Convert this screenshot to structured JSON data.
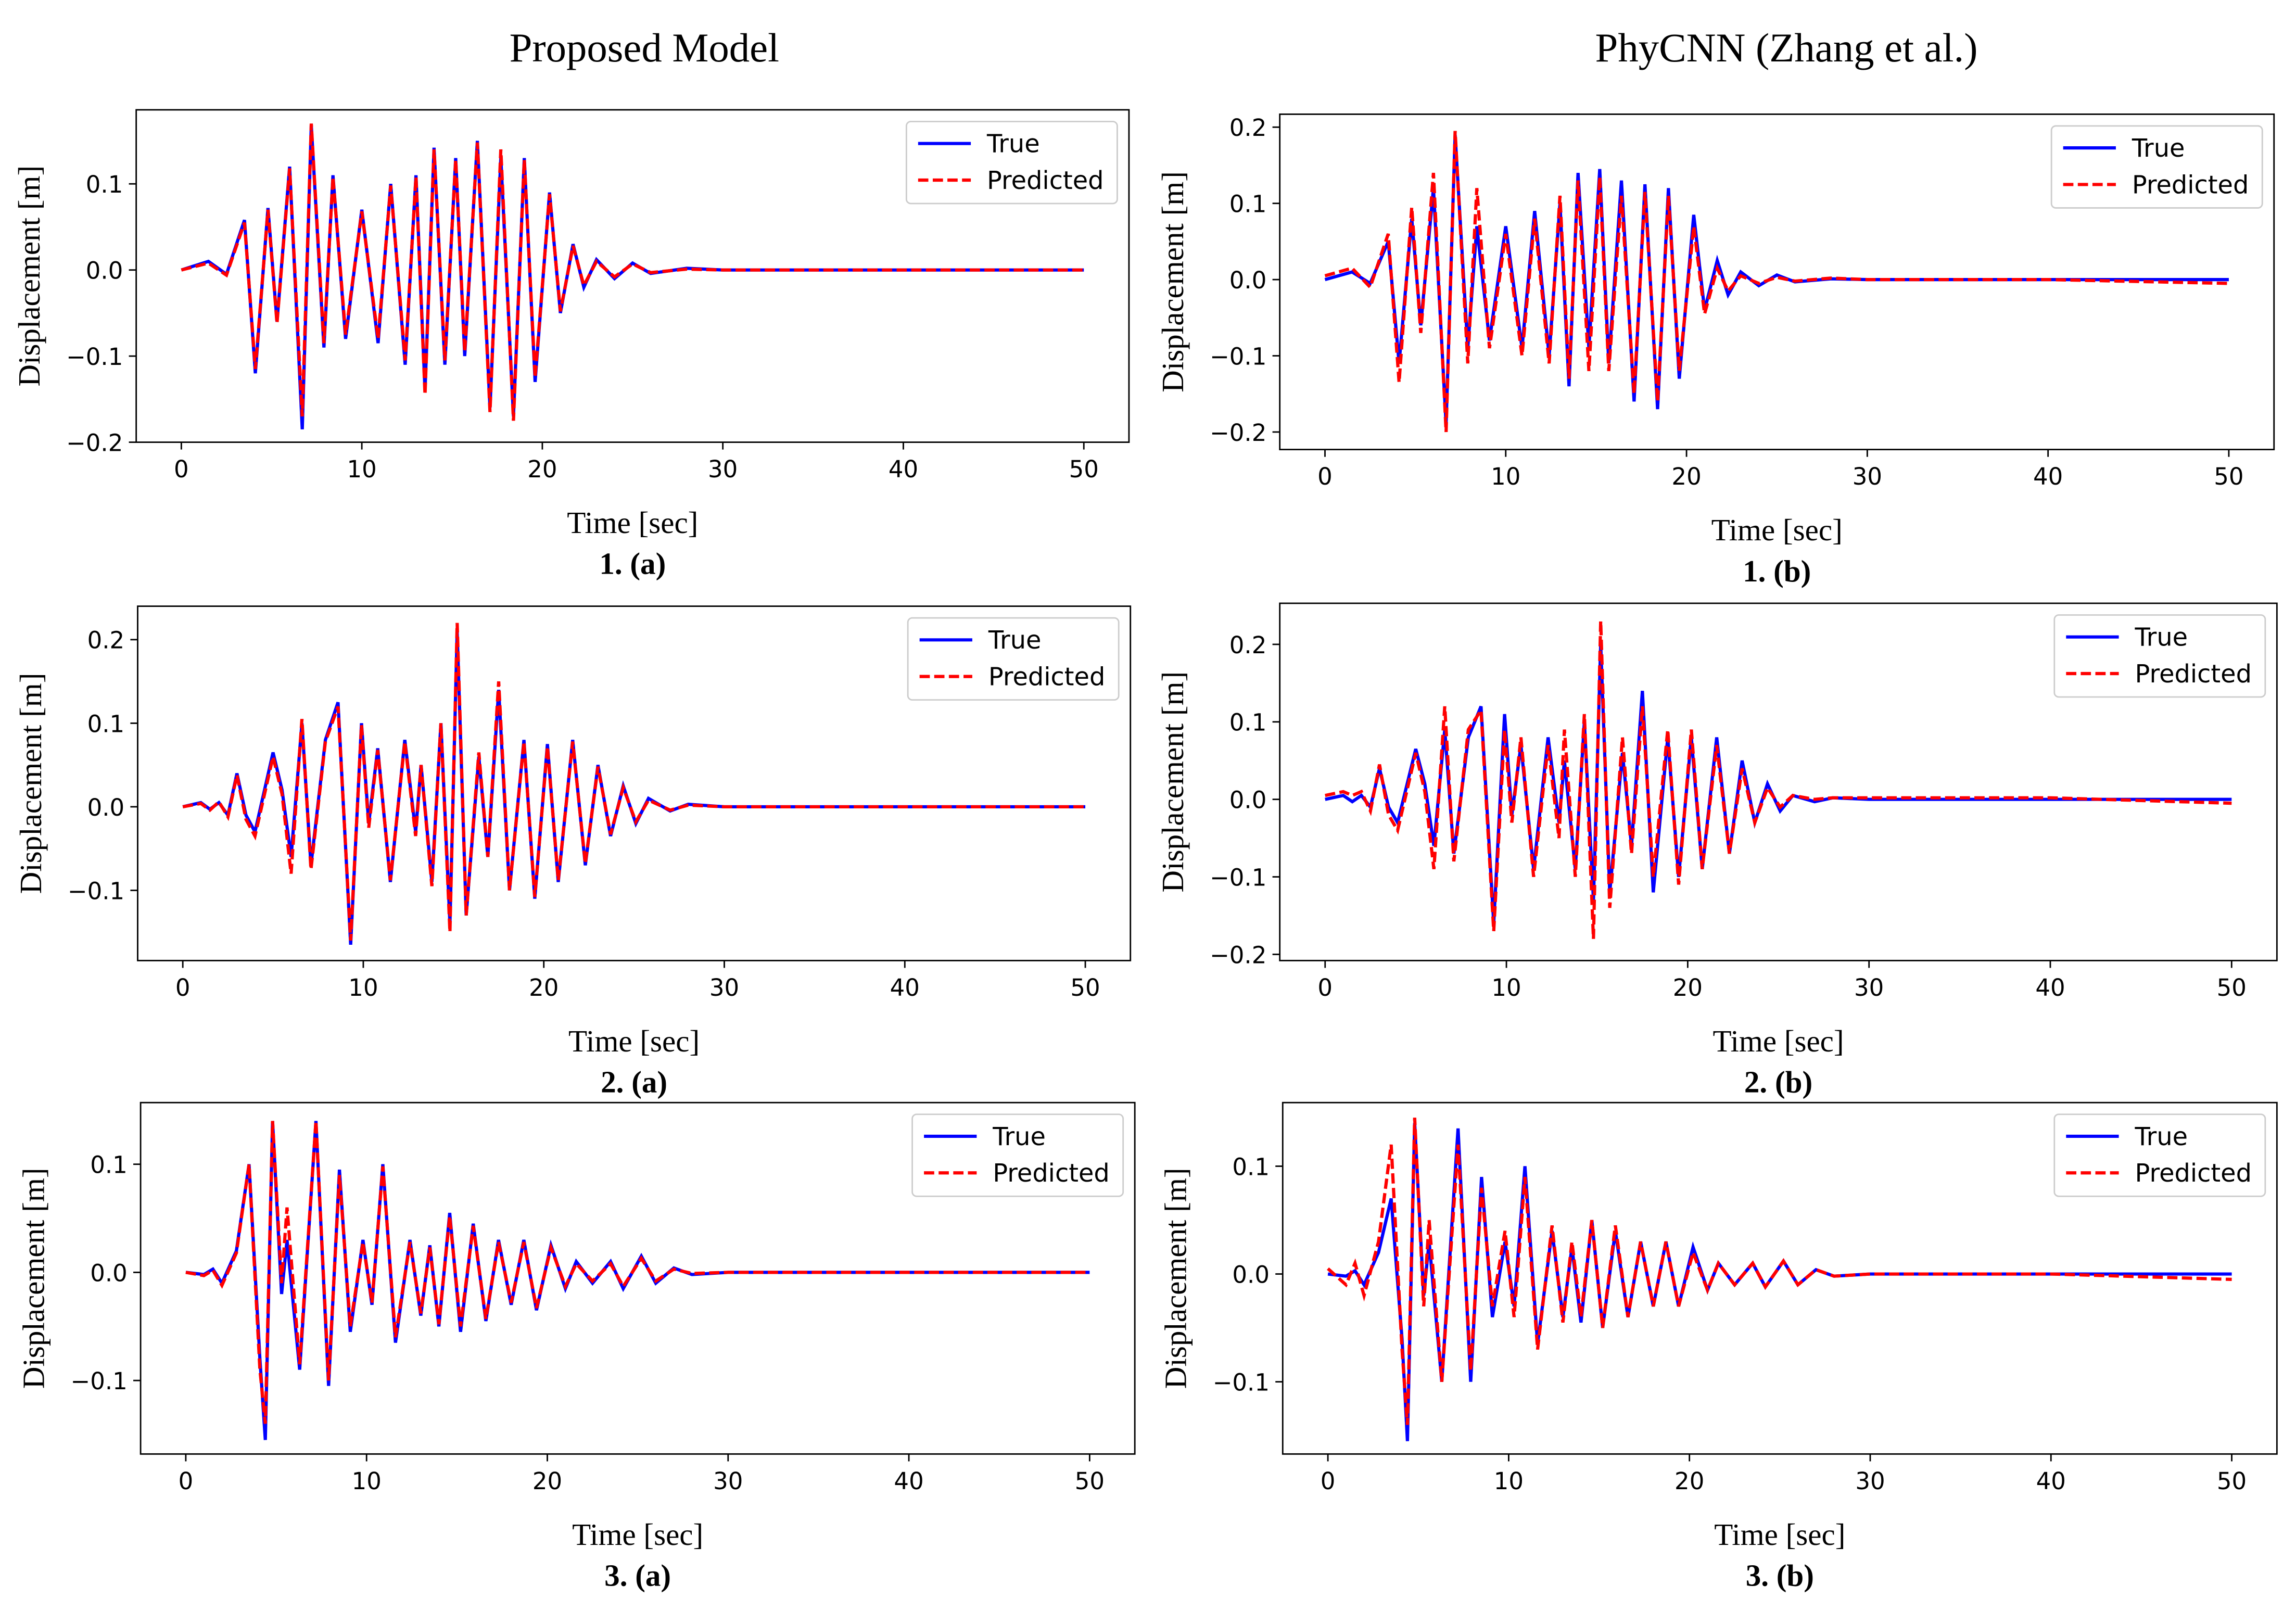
{
  "headers": [
    "Proposed Model",
    "PhyCNN (Zhang et al.)"
  ],
  "chart_data": [
    {
      "type": "line",
      "caption": "1. (a)",
      "xlabel": "Time [sec]",
      "ylabel": "Displacement [m]",
      "legend": "upper right",
      "x": [
        0,
        1.5,
        2.5,
        3.5,
        4.1,
        4.8,
        5.3,
        6.0,
        6.7,
        7.2,
        7.9,
        8.4,
        9.1,
        10.0,
        10.9,
        11.6,
        12.4,
        13.0,
        13.5,
        14.0,
        14.6,
        15.2,
        15.7,
        16.4,
        17.1,
        17.7,
        18.4,
        19.0,
        19.6,
        20.4,
        21.0,
        21.7,
        22.3,
        23,
        24,
        25,
        26,
        28,
        30,
        40,
        50
      ],
      "series": [
        {
          "name": "True",
          "color": "#0000ff",
          "linestyle": "solid",
          "values": [
            0,
            0.01,
            -0.005,
            0.058,
            -0.12,
            0.072,
            -0.06,
            0.12,
            -0.185,
            0.168,
            -0.09,
            0.11,
            -0.08,
            0.07,
            -0.085,
            0.1,
            -0.11,
            0.11,
            -0.14,
            0.142,
            -0.11,
            0.13,
            -0.1,
            0.15,
            -0.16,
            0.13,
            -0.17,
            0.13,
            -0.13,
            0.09,
            -0.05,
            0.03,
            -0.02,
            0.012,
            -0.01,
            0.008,
            -0.004,
            0.002,
            0,
            0,
            0
          ]
        },
        {
          "name": "Predicted",
          "color": "#ff0000",
          "linestyle": "dashed",
          "values": [
            0,
            0.008,
            -0.006,
            0.055,
            -0.115,
            0.07,
            -0.062,
            0.118,
            -0.17,
            0.17,
            -0.085,
            0.108,
            -0.075,
            0.068,
            -0.08,
            0.098,
            -0.105,
            0.108,
            -0.145,
            0.14,
            -0.105,
            0.128,
            -0.095,
            0.148,
            -0.165,
            0.14,
            -0.175,
            0.128,
            -0.125,
            0.088,
            -0.048,
            0.028,
            -0.018,
            0.01,
            -0.008,
            0.007,
            -0.003,
            0.001,
            0,
            0,
            0
          ]
        }
      ],
      "xlim": [
        -2.5,
        52.5
      ],
      "ylim": [
        -0.2,
        0.186
      ],
      "xticks": [
        0,
        10,
        20,
        30,
        40,
        50
      ],
      "yticks": [
        {
          "value": -0.2,
          "label": "−0.2"
        },
        {
          "value": -0.1,
          "label": "−0.1"
        },
        {
          "value": 0,
          "label": "0.0"
        },
        {
          "value": 0.1,
          "label": "0.1"
        }
      ]
    },
    {
      "type": "line",
      "caption": "1. (b)",
      "xlabel": "Time [sec]",
      "ylabel": "Displacement [m]",
      "legend": "upper right",
      "x": [
        0,
        1.5,
        2.5,
        3.5,
        4.1,
        4.8,
        5.3,
        6.0,
        6.7,
        7.2,
        7.9,
        8.4,
        9.1,
        10.0,
        10.9,
        11.6,
        12.4,
        13.0,
        13.5,
        14.0,
        14.6,
        15.2,
        15.7,
        16.4,
        17.1,
        17.7,
        18.4,
        19.0,
        19.6,
        20.4,
        21.0,
        21.7,
        22.3,
        23,
        24,
        25,
        26,
        28,
        30,
        40,
        50
      ],
      "series": [
        {
          "name": "True",
          "color": "#0000ff",
          "linestyle": "solid",
          "values": [
            0,
            0.01,
            -0.005,
            0.05,
            -0.11,
            0.08,
            -0.06,
            0.12,
            -0.19,
            0.19,
            -0.09,
            0.07,
            -0.08,
            0.07,
            -0.09,
            0.09,
            -0.1,
            0.1,
            -0.14,
            0.14,
            -0.09,
            0.145,
            -0.11,
            0.13,
            -0.16,
            0.125,
            -0.17,
            0.12,
            -0.13,
            0.085,
            -0.04,
            0.025,
            -0.02,
            0.01,
            -0.008,
            0.006,
            -0.003,
            0.001,
            0,
            0,
            0
          ]
        },
        {
          "name": "Predicted",
          "color": "#ff0000",
          "linestyle": "dashed",
          "values": [
            0.005,
            0.015,
            -0.01,
            0.06,
            -0.135,
            0.095,
            -0.07,
            0.14,
            -0.2,
            0.195,
            -0.11,
            0.12,
            -0.09,
            0.06,
            -0.1,
            0.08,
            -0.11,
            0.11,
            -0.13,
            0.13,
            -0.12,
            0.135,
            -0.12,
            0.11,
            -0.15,
            0.115,
            -0.16,
            0.11,
            -0.12,
            0.07,
            -0.045,
            0.015,
            -0.015,
            0.005,
            -0.005,
            0.003,
            -0.002,
            0.002,
            0,
            0,
            -0.005
          ]
        }
      ],
      "xlim": [
        -2.5,
        52.5
      ],
      "ylim": [
        -0.223,
        0.217
      ],
      "xticks": [
        0,
        10,
        20,
        30,
        40,
        50
      ],
      "yticks": [
        {
          "value": -0.2,
          "label": "−0.2"
        },
        {
          "value": -0.1,
          "label": "−0.1"
        },
        {
          "value": 0,
          "label": "0.0"
        },
        {
          "value": 0.1,
          "label": "0.1"
        },
        {
          "value": 0.2,
          "label": "0.2"
        }
      ]
    },
    {
      "type": "line",
      "caption": "2. (a)",
      "xlabel": "Time [sec]",
      "ylabel": "Displacement [m]",
      "legend": "upper right",
      "x": [
        0,
        1,
        1.5,
        2,
        2.5,
        3,
        3.5,
        4,
        5,
        5.5,
        6,
        6.6,
        7.1,
        7.9,
        8.6,
        9.3,
        9.9,
        10.3,
        10.8,
        11.5,
        12.3,
        12.9,
        13.2,
        13.8,
        14.3,
        14.8,
        15.2,
        15.7,
        16.4,
        16.9,
        17.5,
        18.1,
        18.9,
        19.5,
        20.2,
        20.8,
        21.6,
        22.3,
        23.0,
        23.7,
        24.4,
        25.1,
        25.8,
        27,
        28,
        30,
        40,
        50
      ],
      "series": [
        {
          "name": "True",
          "color": "#0000ff",
          "linestyle": "solid",
          "values": [
            0,
            0.005,
            -0.003,
            0.005,
            -0.01,
            0.04,
            -0.01,
            -0.03,
            0.065,
            0.02,
            -0.06,
            0.1,
            -0.07,
            0.08,
            0.125,
            -0.165,
            0.1,
            -0.02,
            0.07,
            -0.09,
            0.08,
            -0.03,
            0.05,
            -0.09,
            0.1,
            -0.14,
            0.21,
            -0.13,
            0.06,
            -0.06,
            0.14,
            -0.1,
            0.08,
            -0.11,
            0.075,
            -0.09,
            0.08,
            -0.07,
            0.05,
            -0.035,
            0.025,
            -0.02,
            0.01,
            -0.005,
            0.003,
            0,
            0,
            0
          ]
        },
        {
          "name": "Predicted",
          "color": "#ff0000",
          "linestyle": "dashed",
          "values": [
            0,
            0.004,
            -0.004,
            0.006,
            -0.012,
            0.038,
            -0.015,
            -0.035,
            0.06,
            0.015,
            -0.08,
            0.105,
            -0.075,
            0.078,
            0.12,
            -0.16,
            0.098,
            -0.025,
            0.068,
            -0.088,
            0.078,
            -0.035,
            0.05,
            -0.095,
            0.1,
            -0.15,
            0.22,
            -0.13,
            0.065,
            -0.06,
            0.15,
            -0.1,
            0.078,
            -0.108,
            0.072,
            -0.088,
            0.078,
            -0.068,
            0.048,
            -0.033,
            0.023,
            -0.018,
            0.008,
            -0.004,
            0.002,
            0,
            0,
            0
          ]
        }
      ],
      "xlim": [
        -2.5,
        52.5
      ],
      "ylim": [
        -0.184,
        0.24
      ],
      "xticks": [
        0,
        10,
        20,
        30,
        40,
        50
      ],
      "yticks": [
        {
          "value": -0.1,
          "label": "−0.1"
        },
        {
          "value": 0,
          "label": "0.0"
        },
        {
          "value": 0.1,
          "label": "0.1"
        },
        {
          "value": 0.2,
          "label": "0.2"
        }
      ]
    },
    {
      "type": "line",
      "caption": "2. (b)",
      "xlabel": "Time [sec]",
      "ylabel": "Displacement [m]",
      "legend": "upper right",
      "x": [
        0,
        1,
        1.5,
        2,
        2.5,
        3,
        3.5,
        4,
        5,
        5.5,
        6,
        6.6,
        7.1,
        7.9,
        8.6,
        9.3,
        9.9,
        10.3,
        10.8,
        11.5,
        12.3,
        12.9,
        13.2,
        13.8,
        14.3,
        14.8,
        15.2,
        15.7,
        16.4,
        16.9,
        17.5,
        18.1,
        18.9,
        19.5,
        20.2,
        20.8,
        21.6,
        22.3,
        23.0,
        23.7,
        24.4,
        25.1,
        25.8,
        27,
        28,
        30,
        40,
        50
      ],
      "series": [
        {
          "name": "True",
          "color": "#0000ff",
          "linestyle": "solid",
          "values": [
            0,
            0.005,
            -0.003,
            0.005,
            -0.01,
            0.04,
            -0.01,
            -0.03,
            0.065,
            0.02,
            -0.06,
            0.09,
            -0.07,
            0.08,
            0.12,
            -0.16,
            0.11,
            -0.02,
            0.07,
            -0.09,
            0.08,
            -0.03,
            0.05,
            -0.09,
            0.1,
            -0.13,
            0.2,
            -0.12,
            0.06,
            -0.06,
            0.14,
            -0.12,
            0.08,
            -0.1,
            0.08,
            -0.09,
            0.08,
            -0.07,
            0.05,
            -0.03,
            0.02,
            -0.015,
            0.005,
            -0.003,
            0.002,
            0,
            0,
            0
          ]
        },
        {
          "name": "Predicted",
          "color": "#ff0000",
          "linestyle": "dashed",
          "values": [
            0.005,
            0.01,
            0.005,
            0.01,
            -0.015,
            0.045,
            -0.02,
            -0.04,
            0.06,
            0.01,
            -0.09,
            0.12,
            -0.08,
            0.09,
            0.115,
            -0.17,
            0.09,
            -0.03,
            0.08,
            -0.1,
            0.07,
            -0.05,
            0.09,
            -0.1,
            0.11,
            -0.18,
            0.23,
            -0.14,
            0.08,
            -0.07,
            0.12,
            -0.1,
            0.09,
            -0.11,
            0.09,
            -0.09,
            0.07,
            -0.07,
            0.04,
            -0.03,
            0.015,
            -0.01,
            0.005,
            0,
            0.002,
            0.002,
            0.002,
            -0.005
          ]
        }
      ],
      "xlim": [
        -2.5,
        52.5
      ],
      "ylim": [
        -0.208,
        0.253
      ],
      "xticks": [
        0,
        10,
        20,
        30,
        40,
        50
      ],
      "yticks": [
        {
          "value": -0.2,
          "label": "−0.2"
        },
        {
          "value": -0.1,
          "label": "−0.1"
        },
        {
          "value": 0,
          "label": "0.0"
        },
        {
          "value": 0.1,
          "label": "0.1"
        },
        {
          "value": 0.2,
          "label": "0.2"
        }
      ]
    },
    {
      "type": "line",
      "caption": "3. (a)",
      "xlabel": "Time [sec]",
      "ylabel": "Displacement [m]",
      "legend": "upper right",
      "x": [
        0,
        1,
        1.5,
        2,
        2.8,
        3.5,
        4.1,
        4.4,
        4.8,
        5.3,
        5.6,
        6.3,
        7.2,
        7.9,
        8.5,
        9.1,
        9.8,
        10.3,
        10.9,
        11.6,
        12.4,
        13.0,
        13.5,
        14.0,
        14.6,
        15.2,
        15.9,
        16.6,
        17.3,
        18,
        18.7,
        19.4,
        20.2,
        21,
        21.6,
        22.5,
        23.5,
        24.2,
        25.2,
        26,
        27,
        28,
        30,
        40,
        50
      ],
      "series": [
        {
          "name": "True",
          "color": "#0000ff",
          "linestyle": "solid",
          "values": [
            0,
            -0.002,
            0.003,
            -0.01,
            0.02,
            0.1,
            -0.08,
            -0.155,
            0.14,
            -0.02,
            0.03,
            -0.09,
            0.14,
            -0.105,
            0.095,
            -0.055,
            0.03,
            -0.03,
            0.1,
            -0.065,
            0.03,
            -0.04,
            0.025,
            -0.05,
            0.055,
            -0.055,
            0.045,
            -0.045,
            0.03,
            -0.03,
            0.03,
            -0.035,
            0.025,
            -0.015,
            0.01,
            -0.01,
            0.01,
            -0.015,
            0.015,
            -0.01,
            0.004,
            -0.002,
            0,
            0,
            0
          ]
        },
        {
          "name": "Predicted",
          "color": "#ff0000",
          "linestyle": "dashed",
          "values": [
            0,
            -0.003,
            0.002,
            -0.012,
            0.018,
            0.1,
            -0.09,
            -0.14,
            0.14,
            -0.01,
            0.06,
            -0.085,
            0.14,
            -0.1,
            0.09,
            -0.05,
            0.028,
            -0.028,
            0.098,
            -0.06,
            0.028,
            -0.038,
            0.023,
            -0.048,
            0.052,
            -0.05,
            0.043,
            -0.043,
            0.028,
            -0.028,
            0.028,
            -0.033,
            0.023,
            -0.013,
            0.008,
            -0.008,
            0.008,
            -0.013,
            0.013,
            -0.008,
            0.003,
            -0.001,
            0,
            0,
            0
          ]
        }
      ],
      "xlim": [
        -2.5,
        52.5
      ],
      "ylim": [
        -0.168,
        0.157
      ],
      "xticks": [
        0,
        10,
        20,
        30,
        40,
        50
      ],
      "yticks": [
        {
          "value": -0.1,
          "label": "−0.1"
        },
        {
          "value": 0,
          "label": "0.0"
        },
        {
          "value": 0.1,
          "label": "0.1"
        }
      ]
    },
    {
      "type": "line",
      "caption": "3. (b)",
      "xlabel": "Time [sec]",
      "ylabel": "Displacement [m]",
      "legend": "upper right",
      "x": [
        0,
        1,
        1.5,
        2,
        2.8,
        3.5,
        4.1,
        4.4,
        4.8,
        5.3,
        5.6,
        6.3,
        7.2,
        7.9,
        8.5,
        9.1,
        9.8,
        10.3,
        10.9,
        11.6,
        12.4,
        13.0,
        13.5,
        14.0,
        14.6,
        15.2,
        15.9,
        16.6,
        17.3,
        18,
        18.7,
        19.4,
        20.2,
        21,
        21.6,
        22.5,
        23.5,
        24.2,
        25.2,
        26,
        27,
        28,
        30,
        40,
        50
      ],
      "series": [
        {
          "name": "True",
          "color": "#0000ff",
          "linestyle": "solid",
          "values": [
            0,
            -0.002,
            0.003,
            -0.01,
            0.02,
            0.07,
            -0.06,
            -0.155,
            0.14,
            -0.02,
            0.03,
            -0.1,
            0.135,
            -0.1,
            0.09,
            -0.04,
            0.03,
            -0.03,
            0.1,
            -0.065,
            0.04,
            -0.04,
            0.025,
            -0.045,
            0.05,
            -0.05,
            0.04,
            -0.04,
            0.03,
            -0.03,
            0.03,
            -0.03,
            0.025,
            -0.015,
            0.01,
            -0.01,
            0.01,
            -0.012,
            0.012,
            -0.01,
            0.004,
            -0.002,
            0,
            0,
            0
          ]
        },
        {
          "name": "Predicted",
          "color": "#ff0000",
          "linestyle": "dashed",
          "values": [
            0.005,
            -0.01,
            0.01,
            -0.02,
            0.03,
            0.12,
            -0.07,
            -0.14,
            0.145,
            -0.03,
            0.05,
            -0.1,
            0.12,
            -0.09,
            0.08,
            -0.03,
            0.04,
            -0.04,
            0.09,
            -0.07,
            0.045,
            -0.045,
            0.03,
            -0.04,
            0.05,
            -0.05,
            0.045,
            -0.04,
            0.03,
            -0.03,
            0.03,
            -0.03,
            0.02,
            -0.015,
            0.01,
            -0.01,
            0.01,
            -0.012,
            0.012,
            -0.01,
            0.004,
            -0.002,
            0,
            0,
            -0.005
          ]
        }
      ],
      "xlim": [
        -2.5,
        52.5
      ],
      "ylim": [
        -0.167,
        0.159
      ],
      "xticks": [
        0,
        10,
        20,
        30,
        40,
        50
      ],
      "yticks": [
        {
          "value": -0.1,
          "label": "−0.1"
        },
        {
          "value": 0,
          "label": "0.0"
        },
        {
          "value": 0.1,
          "label": "0.1"
        }
      ]
    }
  ]
}
